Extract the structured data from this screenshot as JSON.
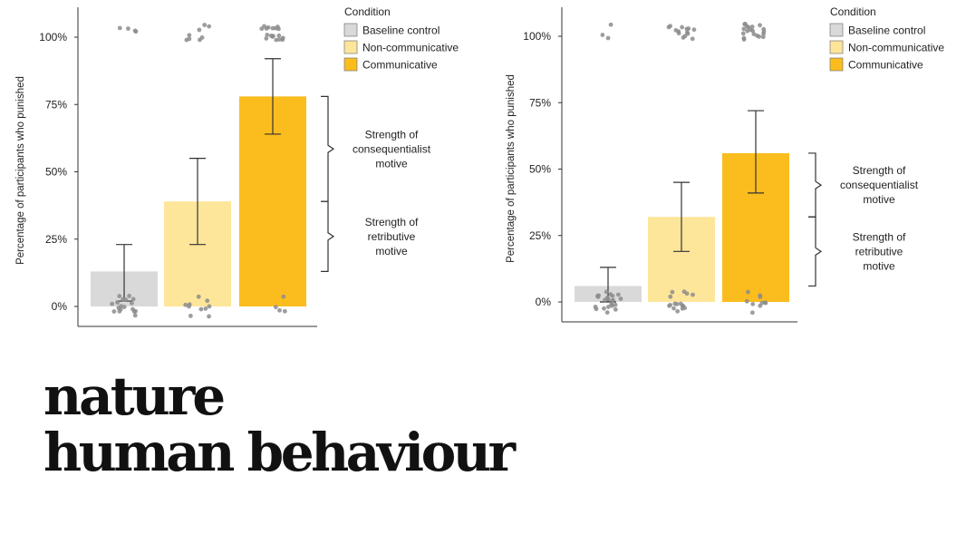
{
  "brand": {
    "line1": "nature",
    "line2": "human behaviour"
  },
  "colors": {
    "baseline": "#d9d9d9",
    "noncommunicative": "#fde59a",
    "communicative": "#fbbd1e",
    "dot": "#8c8c8c",
    "axis": "#333333"
  },
  "chart_data": [
    {
      "type": "bar",
      "title": "",
      "xlabel": "",
      "ylabel": "Percentage of participants who punished",
      "ylim": [
        0,
        100
      ],
      "ticks": [
        "0%",
        "25%",
        "50%",
        "75%",
        "100%"
      ],
      "tick_values": [
        0,
        25,
        50,
        75,
        100
      ],
      "categories": [
        "Baseline control",
        "Non-communicative",
        "Communicative"
      ],
      "values": [
        13,
        39,
        78
      ],
      "error_low": [
        2,
        23,
        64
      ],
      "error_high": [
        23,
        55,
        92
      ],
      "legend_title": "Condition",
      "legend": [
        "Baseline control",
        "Non-communicative",
        "Communicative"
      ],
      "legend_position": "top-right",
      "annotations": [
        {
          "lines": [
            "Strength of",
            "consequentialist",
            "motive"
          ],
          "from": 39,
          "to": 78
        },
        {
          "lines": [
            "Strength of",
            "retributive",
            "motive"
          ],
          "from": 13,
          "to": 39
        }
      ],
      "dots_top": [
        4,
        8,
        18
      ],
      "dots_bottom": [
        18,
        10,
        4
      ]
    },
    {
      "type": "bar",
      "title": "",
      "xlabel": "",
      "ylabel": "Percentage of participants who punished",
      "ylim": [
        0,
        100
      ],
      "ticks": [
        "0%",
        "25%",
        "50%",
        "75%",
        "100%"
      ],
      "tick_values": [
        0,
        25,
        50,
        75,
        100
      ],
      "categories": [
        "Baseline control",
        "Non-communicative",
        "Communicative"
      ],
      "values": [
        6,
        32,
        56
      ],
      "error_low": [
        0,
        19,
        41
      ],
      "error_high": [
        13,
        45,
        72
      ],
      "legend_title": "Condition",
      "legend": [
        "Baseline control",
        "Non-communicative",
        "Communicative"
      ],
      "legend_position": "top-right",
      "annotations": [
        {
          "lines": [
            "Strength of",
            "consequentialist",
            "motive"
          ],
          "from": 32,
          "to": 56
        },
        {
          "lines": [
            "Strength of",
            "retributive",
            "motive"
          ],
          "from": 6,
          "to": 32
        }
      ],
      "dots_top": [
        3,
        14,
        20
      ],
      "dots_bottom": [
        22,
        16,
        10
      ]
    }
  ]
}
